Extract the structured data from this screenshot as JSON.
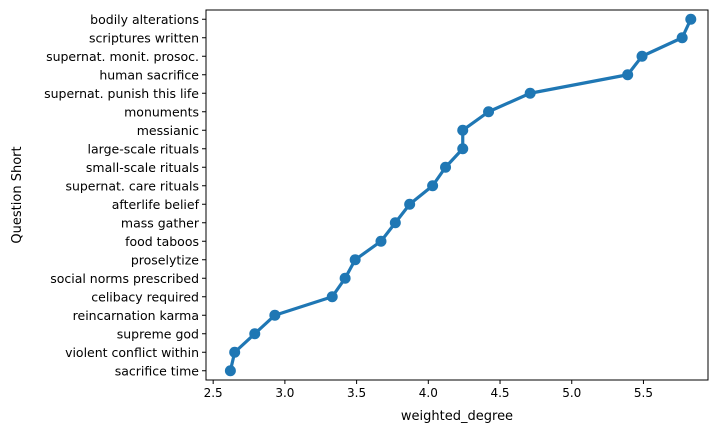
{
  "chart_data": {
    "type": "line",
    "title": "",
    "xlabel": "weighted_degree",
    "ylabel": "Question Short",
    "xlim": [
      2.45,
      5.95
    ],
    "xticks": [
      2.5,
      3.0,
      3.5,
      4.0,
      4.5,
      5.0,
      5.5
    ],
    "xtick_labels": [
      "2.5",
      "3.0",
      "3.5",
      "4.0",
      "4.5",
      "5.0",
      "5.5"
    ],
    "grid": false,
    "legend": "none",
    "series_color": "#1f77b4",
    "categories": [
      "bodily alterations",
      "scriptures written",
      "supernat. monit. prosoc.",
      "human sacrifice",
      "supernat. punish this life",
      "monuments",
      "messianic",
      "large-scale rituals",
      "small-scale rituals",
      "supernat. care rituals",
      "afterlife belief",
      "mass gather",
      "food taboos",
      "proselytize",
      "social norms prescribed",
      "celibacy required",
      "reincarnation karma",
      "supreme god",
      "violent conflict within",
      "sacrifice time"
    ],
    "values": [
      5.83,
      5.77,
      5.49,
      5.39,
      4.71,
      4.42,
      4.24,
      4.24,
      4.12,
      4.03,
      3.87,
      3.77,
      3.67,
      3.49,
      3.42,
      3.33,
      2.93,
      2.79,
      2.65,
      2.62
    ]
  }
}
